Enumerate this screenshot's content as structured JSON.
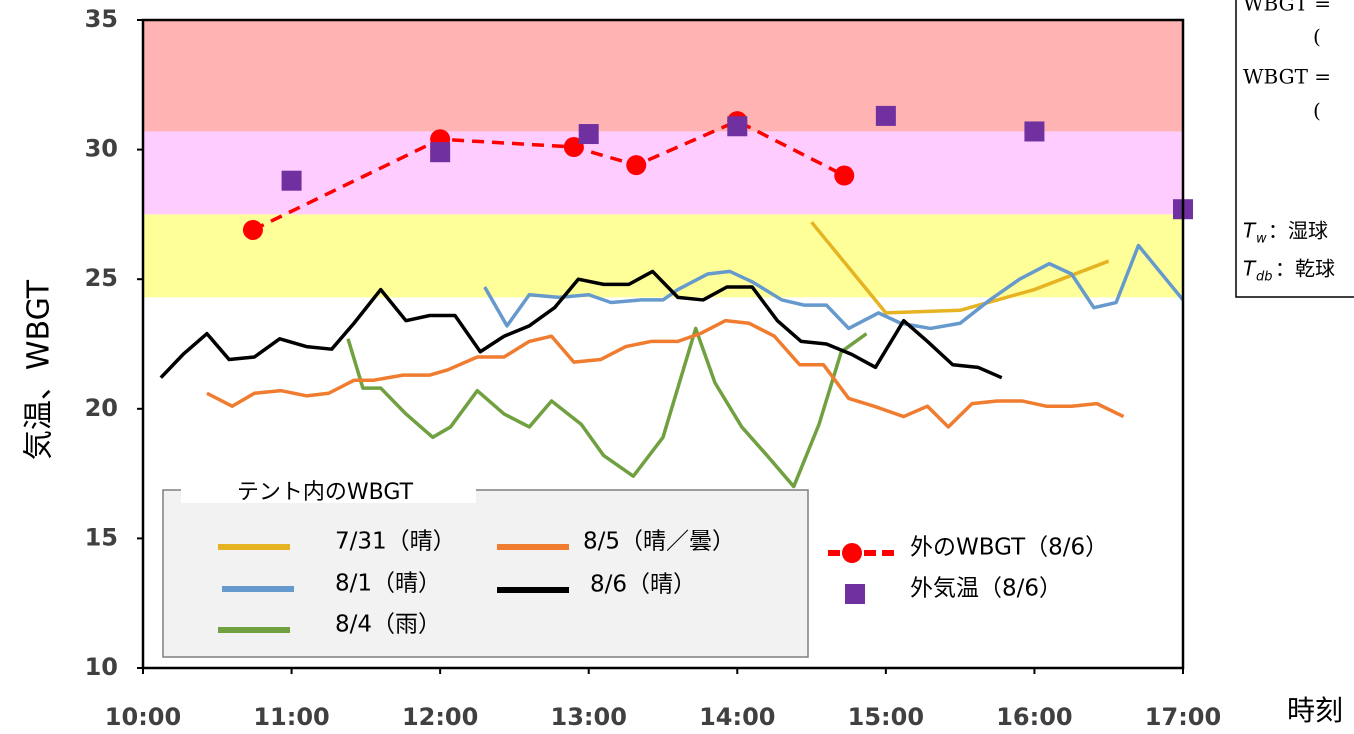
{
  "chart_data": {
    "type": "line",
    "y_label": "気温、WBGT",
    "x_label": "時刻",
    "xlim": [
      10,
      17
    ],
    "xticks": [
      {
        "value": 10,
        "label": "10:00"
      },
      {
        "value": 11,
        "label": "11:00"
      },
      {
        "value": 12,
        "label": "12:00"
      },
      {
        "value": 13,
        "label": "13:00"
      },
      {
        "value": 14,
        "label": "14:00"
      },
      {
        "value": 15,
        "label": "15:00"
      },
      {
        "value": 16,
        "label": "16:00"
      },
      {
        "value": 17,
        "label": "17:00"
      }
    ],
    "ylim": [
      10,
      35
    ],
    "yticks": [
      10,
      15,
      20,
      25,
      30,
      35
    ],
    "bands": [
      {
        "from": 30.7,
        "to": 35,
        "color": "#ffb3b3"
      },
      {
        "from": 27.5,
        "to": 30.7,
        "color": "#ffccff"
      },
      {
        "from": 24.3,
        "to": 27.5,
        "color": "#ffff99"
      }
    ],
    "legend_title": "テント内のWBGT",
    "series": [
      {
        "name": "7/31（晴）",
        "color": "#e6b422",
        "x": [
          14.5,
          15.0,
          15.5,
          16.0,
          16.5
        ],
        "values": [
          27.2,
          23.7,
          23.8,
          24.6,
          25.7
        ]
      },
      {
        "name": "8/1（晴）",
        "color": "#6699cc",
        "x": [
          12.3,
          12.45,
          12.6,
          12.8,
          13.0,
          13.15,
          13.35,
          13.5,
          13.6,
          13.8,
          13.95,
          14.1,
          14.3,
          14.45,
          14.6,
          14.75,
          14.95,
          15.1,
          15.3,
          15.5,
          15.7,
          15.9,
          16.1,
          16.25,
          16.4,
          16.55,
          16.7,
          17.0
        ],
        "values": [
          24.7,
          23.2,
          24.4,
          24.3,
          24.4,
          24.1,
          24.2,
          24.2,
          24.6,
          25.2,
          25.3,
          24.9,
          24.2,
          24.0,
          24.0,
          23.1,
          23.7,
          23.3,
          23.1,
          23.3,
          24.2,
          25.0,
          25.6,
          25.2,
          23.9,
          24.1,
          26.3,
          24.2
        ]
      },
      {
        "name": "8/4（雨）",
        "color": "#70a040",
        "x": [
          11.38,
          11.48,
          11.6,
          11.77,
          11.95,
          12.07,
          12.25,
          12.43,
          12.6,
          12.75,
          12.95,
          13.1,
          13.3,
          13.5,
          13.72,
          13.85,
          14.03,
          14.2,
          14.38,
          14.55,
          14.7,
          14.87
        ],
        "values": [
          22.7,
          20.8,
          20.8,
          19.8,
          18.9,
          19.3,
          20.7,
          19.8,
          19.3,
          20.3,
          19.4,
          18.2,
          17.4,
          18.9,
          23.1,
          21.0,
          19.3,
          18.2,
          17.0,
          19.4,
          22.2,
          22.9
        ]
      },
      {
        "name": "8/5（晴／曇）",
        "color": "#f07c30",
        "x": [
          10.43,
          10.6,
          10.75,
          10.93,
          11.1,
          11.25,
          11.42,
          11.55,
          11.75,
          11.93,
          12.05,
          12.25,
          12.43,
          12.6,
          12.75,
          12.9,
          13.08,
          13.25,
          13.42,
          13.6,
          13.75,
          13.92,
          14.08,
          14.25,
          14.42,
          14.58,
          14.75,
          14.92,
          15.12,
          15.28,
          15.42,
          15.58,
          15.75,
          15.92,
          16.08,
          16.25,
          16.42,
          16.6
        ],
        "values": [
          20.6,
          20.1,
          20.6,
          20.7,
          20.5,
          20.6,
          21.1,
          21.1,
          21.3,
          21.3,
          21.5,
          22.0,
          22.0,
          22.6,
          22.8,
          21.8,
          21.9,
          22.4,
          22.6,
          22.6,
          22.9,
          23.4,
          23.3,
          22.8,
          21.7,
          21.7,
          20.4,
          20.1,
          19.7,
          20.1,
          19.3,
          20.2,
          20.3,
          20.3,
          20.1,
          20.1,
          20.2,
          19.7
        ]
      },
      {
        "name": "8/6（晴）",
        "color": "#000000",
        "x": [
          10.12,
          10.27,
          10.43,
          10.58,
          10.75,
          10.92,
          11.1,
          11.27,
          11.42,
          11.6,
          11.77,
          11.93,
          12.1,
          12.27,
          12.43,
          12.6,
          12.77,
          12.93,
          13.1,
          13.27,
          13.43,
          13.6,
          13.77,
          13.93,
          14.1,
          14.27,
          14.43,
          14.6,
          14.77,
          14.93,
          15.12,
          15.28,
          15.45,
          15.62,
          15.78
        ],
        "values": [
          21.2,
          22.1,
          22.9,
          21.9,
          22.0,
          22.7,
          22.4,
          22.3,
          23.3,
          24.6,
          23.4,
          23.6,
          23.6,
          22.2,
          22.8,
          23.2,
          23.9,
          25.0,
          24.8,
          24.8,
          25.3,
          24.3,
          24.2,
          24.7,
          24.7,
          23.4,
          22.6,
          22.5,
          22.1,
          21.6,
          23.4,
          22.6,
          21.7,
          21.6,
          21.2
        ]
      },
      {
        "name": "外のWBGT（8/6）",
        "color": "#ff0000",
        "style": "dashed",
        "marker": "circle",
        "x": [
          10.74,
          12.0,
          12.9,
          13.32,
          14.0,
          14.72
        ],
        "values": [
          26.9,
          30.4,
          30.1,
          29.4,
          31.1,
          29.0
        ]
      },
      {
        "name": "外気温（8/6）",
        "color": "#7030a0",
        "style": "none",
        "marker": "square",
        "x": [
          11,
          12,
          13,
          14,
          15,
          16,
          17
        ],
        "values": [
          28.8,
          29.9,
          30.6,
          30.9,
          31.3,
          30.7,
          27.7
        ]
      }
    ]
  },
  "formula_box": {
    "lines": [
      "WBGT =",
      "(",
      "WBGT =",
      "("
    ],
    "defs": [
      {
        "symbol": "T",
        "sub": "w",
        "text": "：湿球"
      },
      {
        "symbol": "T",
        "sub": "db",
        "text": "：乾球"
      }
    ]
  }
}
